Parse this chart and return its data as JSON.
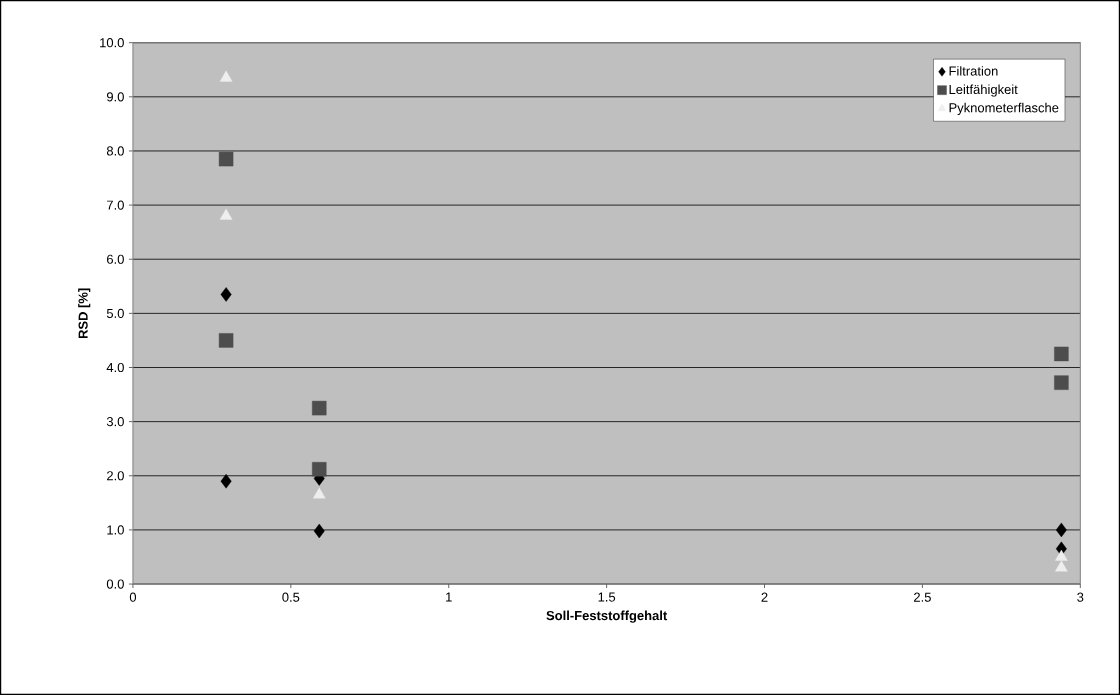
{
  "chart_data": {
    "type": "scatter",
    "xlabel": "Soll-Feststoffgehalt",
    "ylabel": "RSD [%]",
    "xlim": [
      0,
      3
    ],
    "xticks": [
      0,
      0.5,
      1,
      1.5,
      2,
      2.5,
      3
    ],
    "ylim": [
      0,
      10
    ],
    "yticks": [
      {
        "value": 0,
        "label": "0.0"
      },
      {
        "value": 1,
        "label": "1.0"
      },
      {
        "value": 2,
        "label": "2.0"
      },
      {
        "value": 3,
        "label": "3.0"
      },
      {
        "value": 4,
        "label": "4.0"
      },
      {
        "value": 5,
        "label": "5.0"
      },
      {
        "value": 6,
        "label": "6.0"
      },
      {
        "value": 7,
        "label": "7.0"
      },
      {
        "value": 8,
        "label": "8.0"
      },
      {
        "value": 9,
        "label": "9.0"
      },
      {
        "value": 10,
        "label": "10.0"
      }
    ],
    "grid": "y",
    "legend": "top right",
    "series": [
      {
        "name": "Filtration",
        "color": "#000000",
        "marker": "diamond",
        "x": [
          0.295,
          0.295,
          0.59,
          0.59,
          2.94,
          2.94
        ],
        "values": [
          5.35,
          1.9,
          0.98,
          1.95,
          1.0,
          0.65
        ]
      },
      {
        "name": "Leitfähigkeit",
        "color": "#4d4d4d",
        "marker": "square",
        "x": [
          0.295,
          0.295,
          0.59,
          0.59,
          2.94,
          2.94
        ],
        "values": [
          7.85,
          4.5,
          3.25,
          2.12,
          4.25,
          3.72
        ]
      },
      {
        "name": "Pyknometerflasche",
        "color": "#eeeeee",
        "marker": "triangle",
        "x": [
          0.295,
          0.295,
          0.59,
          2.94,
          2.94
        ],
        "values": [
          9.35,
          6.8,
          1.65,
          0.5,
          0.3
        ]
      }
    ]
  }
}
